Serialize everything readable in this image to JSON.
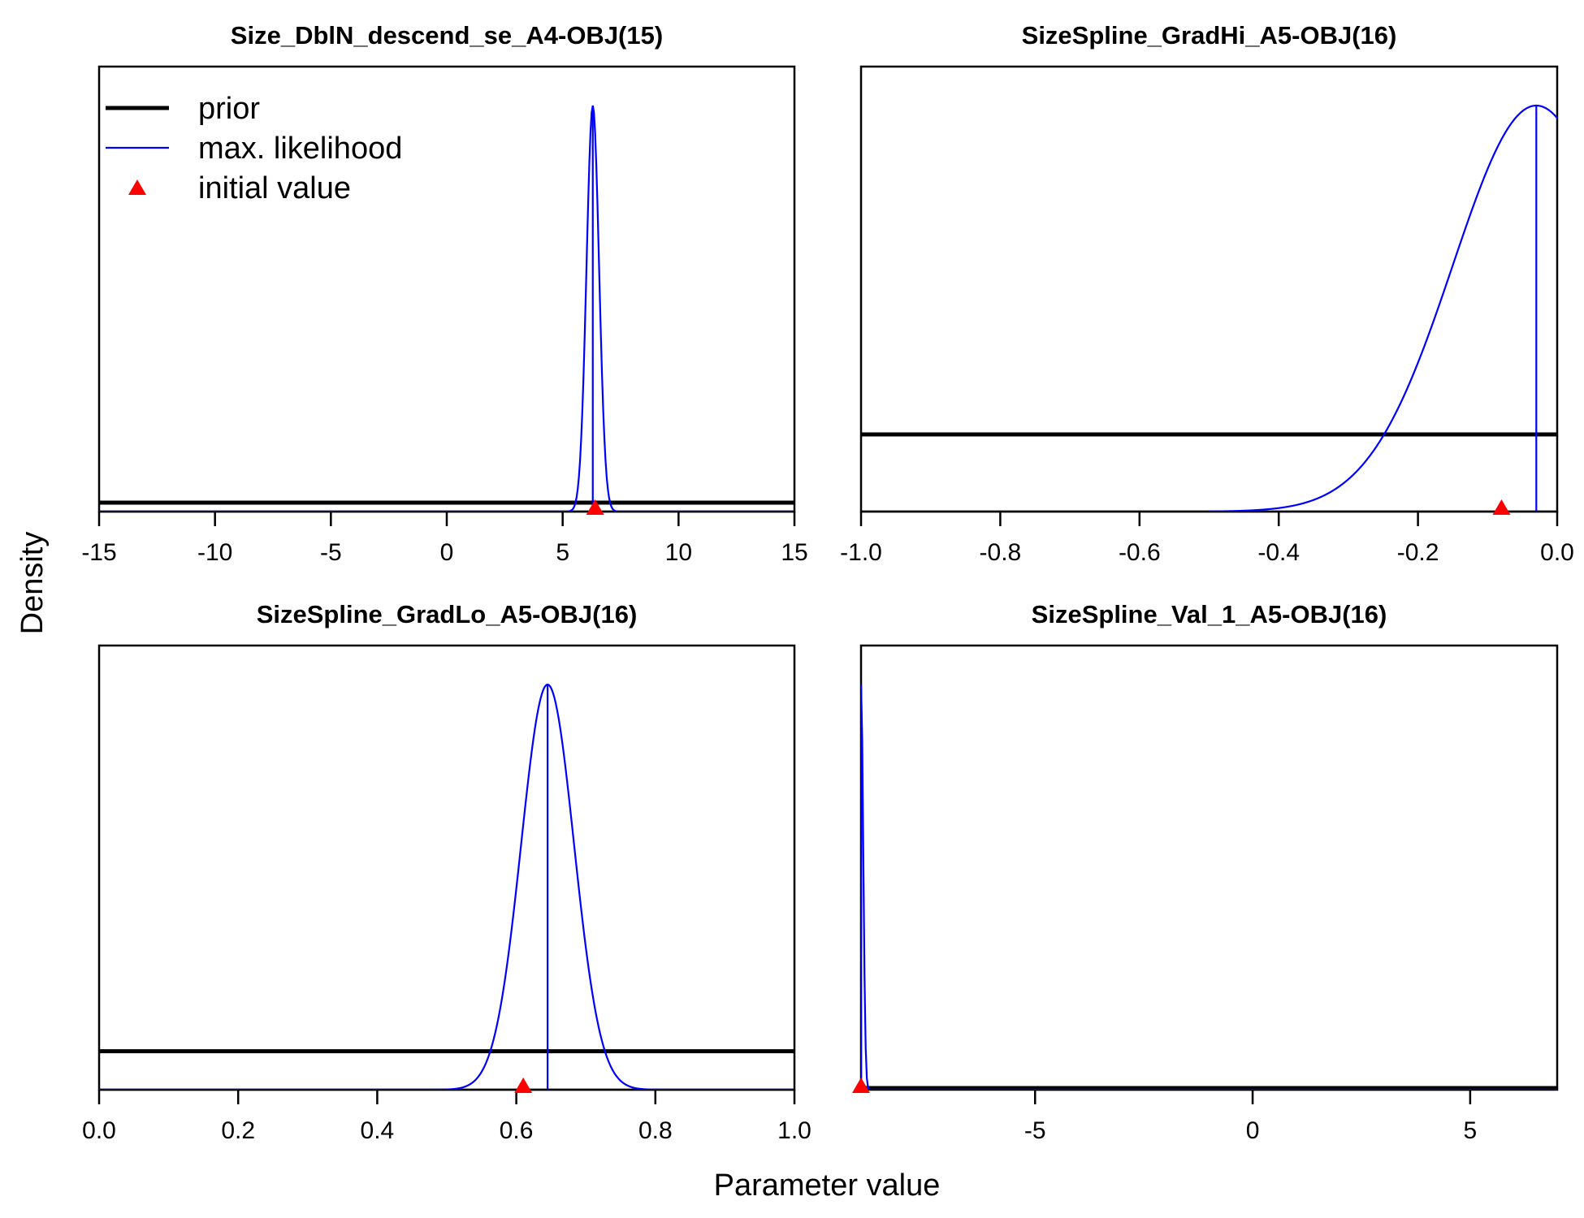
{
  "figure": {
    "xlabel": "Parameter value",
    "ylabel": "Density",
    "legend": {
      "placement": "top-left of first panel",
      "entries": [
        {
          "label": "prior",
          "kind": "line",
          "color": "#000000"
        },
        {
          "label": "max. likelihood",
          "kind": "line",
          "color": "#0000ff"
        },
        {
          "label": "initial value",
          "kind": "triangle",
          "color": "#ff0000"
        }
      ]
    }
  },
  "chart_data": [
    {
      "type": "line",
      "title": "Size_DblN_descend_se_A4-OBJ(15)",
      "xlim": [
        -15,
        15
      ],
      "xticks": [
        -15,
        -10,
        -5,
        0,
        5,
        10,
        15
      ],
      "xtick_labels": [
        "-15",
        "-10",
        "-5",
        "0",
        "5",
        "10",
        "15"
      ],
      "ymax": 1.0,
      "prior": {
        "kind": "flat",
        "level": 0.022
      },
      "mle": {
        "kind": "normal",
        "mean": 6.3,
        "sd": 0.27,
        "peak": 1.0,
        "clip_left": null,
        "clip_right": null
      },
      "mle_vline": 6.3,
      "initial_value": 6.4
    },
    {
      "type": "line",
      "title": "SizeSpline_GradHi_A5-OBJ(16)",
      "xlim": [
        -1.0,
        0.0
      ],
      "xticks": [
        -1.0,
        -0.8,
        -0.6,
        -0.4,
        -0.2,
        0.0
      ],
      "xtick_labels": [
        "-1.0",
        "-0.8",
        "-0.6",
        "-0.4",
        "-0.2",
        "0.0"
      ],
      "ymax": 1.0,
      "prior": {
        "kind": "flat",
        "level": 0.19
      },
      "mle": {
        "kind": "normal",
        "mean": -0.03,
        "sd": 0.12,
        "peak": 1.0,
        "clip_left": -0.5,
        "clip_right": 0.0
      },
      "mle_vline": -0.03,
      "initial_value": -0.08
    },
    {
      "type": "line",
      "title": "SizeSpline_GradLo_A5-OBJ(16)",
      "xlim": [
        0.0,
        1.0
      ],
      "xticks": [
        0.0,
        0.2,
        0.4,
        0.6,
        0.8,
        1.0
      ],
      "xtick_labels": [
        "0.0",
        "0.2",
        "0.4",
        "0.6",
        "0.8",
        "1.0"
      ],
      "ymax": 1.0,
      "prior": {
        "kind": "flat",
        "level": 0.095
      },
      "mle": {
        "kind": "normal",
        "mean": 0.645,
        "sd": 0.038,
        "peak": 1.0,
        "clip_left": null,
        "clip_right": null
      },
      "mle_vline": 0.645,
      "initial_value": 0.61
    },
    {
      "type": "line",
      "title": "SizeSpline_Val_1_A5-OBJ(16)",
      "xlim": [
        -9.0,
        7.0
      ],
      "xticks": [
        -5,
        0,
        5
      ],
      "xtick_labels": [
        "-5",
        "0",
        "5"
      ],
      "ymax": 1.0,
      "prior": {
        "kind": "flat",
        "level": 0.004
      },
      "mle": {
        "kind": "normal",
        "mean": -9.0,
        "sd": 0.05,
        "peak": 1.0,
        "clip_left": -9.0,
        "clip_right": null
      },
      "mle_vline": null,
      "initial_value": -9.0
    }
  ]
}
